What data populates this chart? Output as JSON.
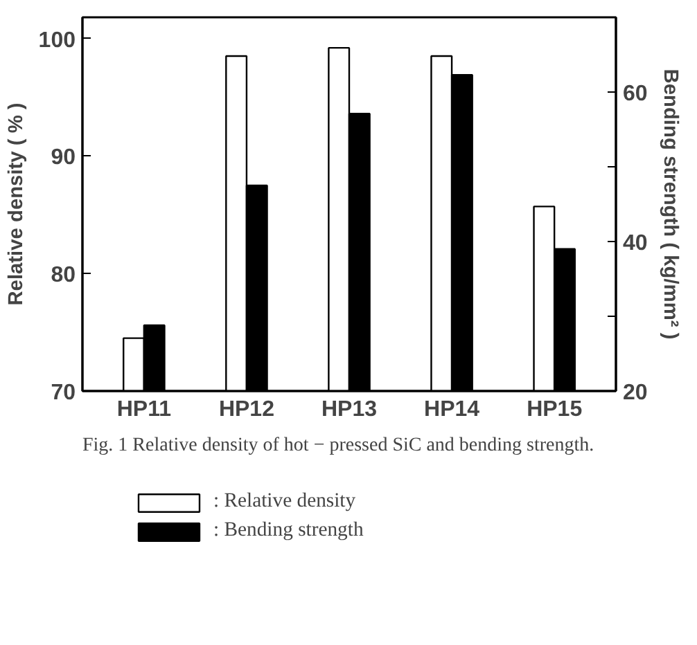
{
  "chart_data": {
    "type": "bar",
    "title": "Fig.  1   Relative density of hot − pressed SiC and bending strength.",
    "ylabel": "Relative density ( % )",
    "y2label": "Bending strength ( kg/mm² )",
    "categories": [
      "HP11",
      "HP12",
      "HP13",
      "HP14",
      "HP15"
    ],
    "series": [
      {
        "name": ": Relative density",
        "color": "#ffffff",
        "values": [
          74.5,
          98.5,
          99.2,
          98.5,
          85.7
        ]
      },
      {
        "name": ": Bending strength",
        "color": "#000000",
        "axis": "y2",
        "values": [
          28.8,
          47.5,
          57.1,
          62.3,
          39.0
        ]
      }
    ],
    "ylim": [
      70,
      101.8
    ],
    "yticks": [
      70,
      80,
      90,
      100
    ],
    "y2lim": [
      20,
      70
    ],
    "y2ticks": [
      20,
      {
        "value": 30,
        "label": null
      },
      40,
      {
        "value": 50,
        "label": null
      },
      60
    ],
    "grid": false,
    "legend": "bottom"
  }
}
